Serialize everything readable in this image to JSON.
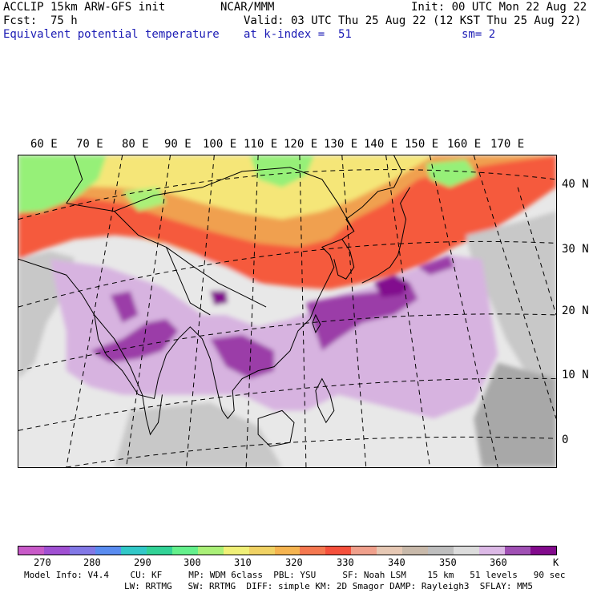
{
  "header": {
    "model_line": "ACCLIP 15km ARW-GFS init",
    "org": "NCAR/MMM",
    "init": "Init: 00 UTC Mon 22 Aug 22",
    "fcst": "Fcst:  75 h",
    "valid": "Valid: 03 UTC Thu 25 Aug 22 (12 KST Thu 25 Aug 22)",
    "field": "Equivalent potential temperature",
    "level": "at k-index =  51",
    "smooth": "sm= 2"
  },
  "map": {
    "longitude_labels": [
      "60 E",
      "70 E",
      "80 E",
      "90 E",
      "100 E",
      "110 E",
      "120 E",
      "130 E",
      "140 E",
      "150 E",
      "160 E",
      "170 E"
    ],
    "latitude_labels": [
      "40 N",
      "30 N",
      "20 N",
      "10 N",
      "0"
    ],
    "colors": {
      "purple_dark": "#820f8e",
      "purple_mid": "#9b3ea8",
      "lavender": "#d7b3e0",
      "gray_light": "#e8e8e8",
      "gray_mid": "#c8c8c8",
      "gray_dark": "#a8a8a8",
      "orange_red": "#f55a3c",
      "orange": "#f0a050",
      "yellow": "#f5e678",
      "green": "#96f078",
      "coast": "#000000"
    }
  },
  "colorbar": {
    "colors": [
      "#c85ac8",
      "#a050d2",
      "#8278e6",
      "#5a8cf0",
      "#32c8c8",
      "#32d296",
      "#64f08c",
      "#aaf078",
      "#f0f078",
      "#f0d264",
      "#f5b450",
      "#f57850",
      "#f5503c",
      "#f0a08c",
      "#e6c8b4",
      "#c8b9aa",
      "#bebebe",
      "#dcdcdc",
      "#dcb9e6",
      "#a050b4",
      "#820a8c"
    ],
    "tick_labels": [
      "270",
      "280",
      "290",
      "300",
      "310",
      "320",
      "330",
      "340",
      "350",
      "360"
    ],
    "unit": "K"
  },
  "footer": {
    "line1": "Model Info: V4.4    CU: KF     MP: WDM 6class  PBL: YSU     SF: Noah LSM    15 km   51 levels   90 sec",
    "line2": "LW: RRTMG   SW: RRTMG  DIFF: simple KM: 2D Smagor DAMP: Rayleigh3  SFLAY: MM5"
  }
}
